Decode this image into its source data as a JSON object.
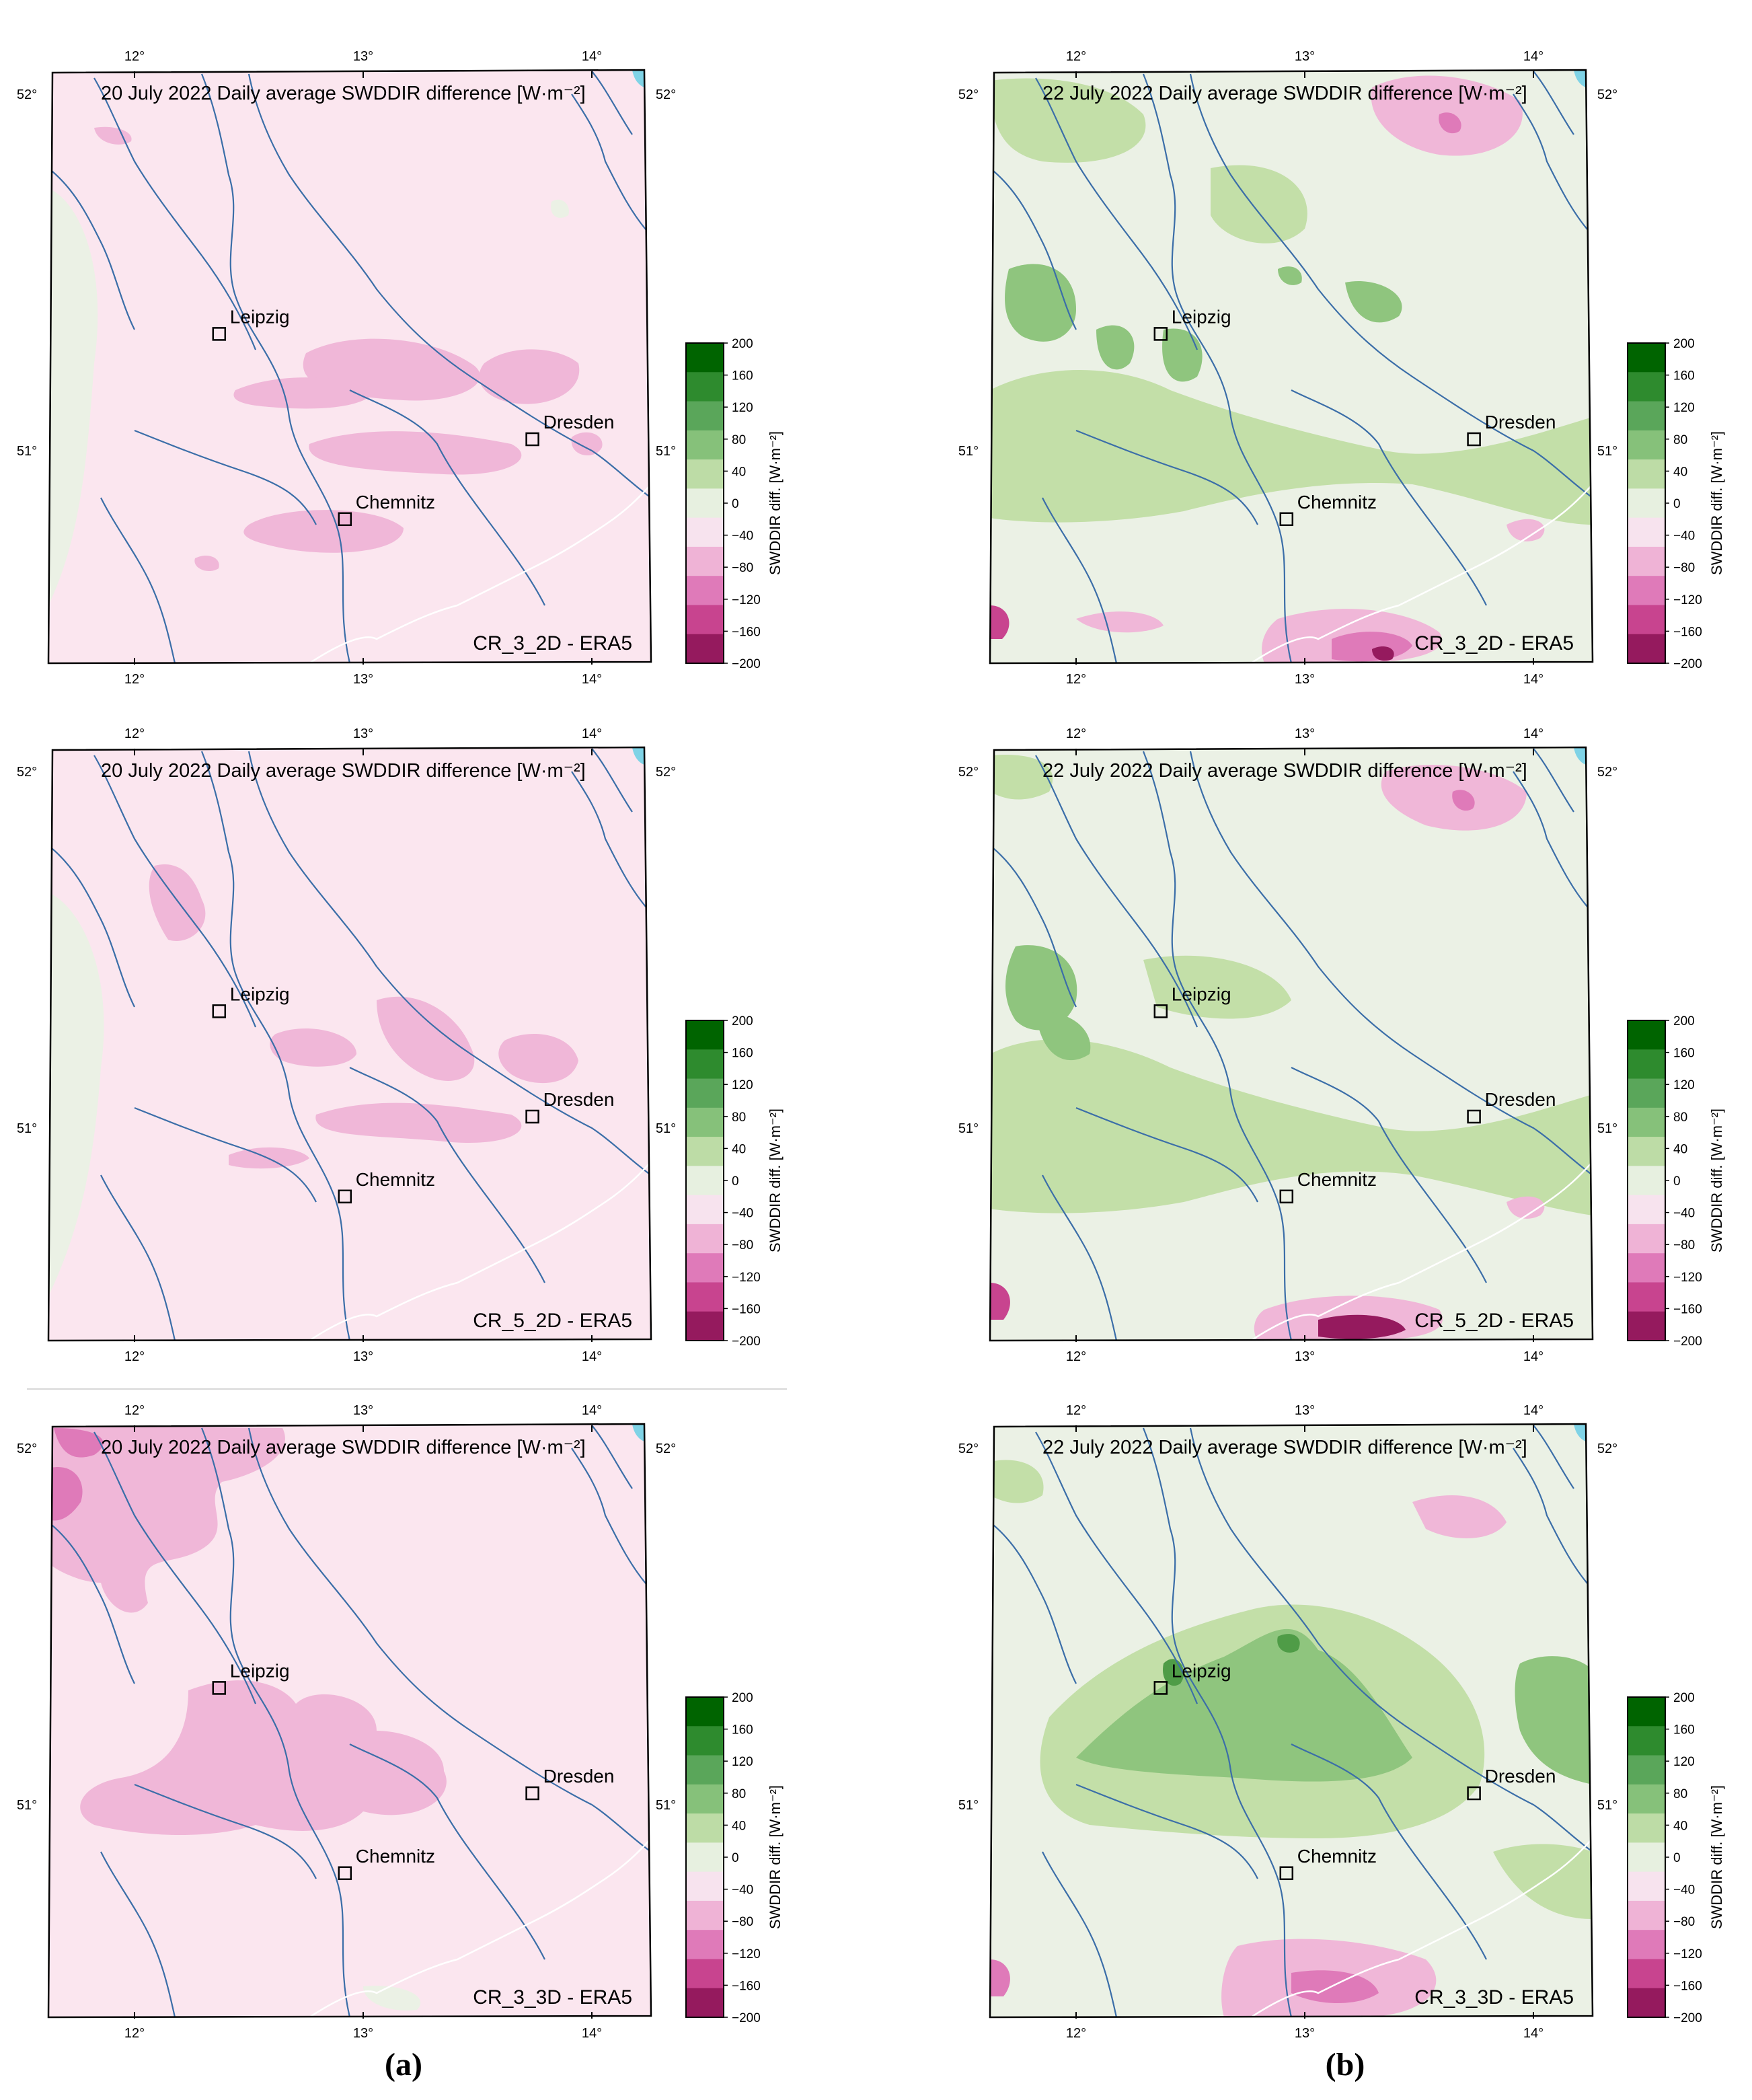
{
  "figure": {
    "variable": "SWDDIR",
    "captions": {
      "a": "(a)",
      "b": "(b)"
    },
    "lon_ticks": [
      "12°",
      "13°",
      "14°"
    ],
    "lat_ticks": [
      "52°",
      "51°"
    ],
    "cities": [
      {
        "name": "Leipzig",
        "lon": 12.37,
        "lat": 51.34
      },
      {
        "name": "Dresden",
        "lon": 13.74,
        "lat": 51.05
      },
      {
        "name": "Chemnitz",
        "lon": 12.92,
        "lat": 50.83
      }
    ],
    "colorbar": {
      "label": "SWDDIR diff. [W·m⁻²]",
      "ticks": [
        "200",
        "160",
        "120",
        "80",
        "40",
        "0",
        "−40",
        "−80",
        "−120",
        "−160",
        "−200"
      ],
      "bin_colors": [
        "#006400",
        "#2e8b2e",
        "#5aa65a",
        "#86c17a",
        "#bddca6",
        "#e7f0e0",
        "#f7e3ee",
        "#efb3d6",
        "#df7ab9",
        "#c8448f",
        "#951a5e"
      ]
    },
    "palette": {
      "pink_light": "#fbe6ef",
      "pink_mid": "#f0b7d8",
      "pink_dark": "#d773b1",
      "green_pale": "#ebf1e5",
      "green_light": "#c3df a8",
      "green_mid": "#8fc57e",
      "green_dark": "#4f9c47",
      "river": "#3b6ea8",
      "border": "#ffffff"
    }
  },
  "panels": [
    {
      "id": "a1",
      "title": "20 July 2022 Daily average SWDDIR difference [W·m⁻²]",
      "label": "CR_3_2D - ERA5"
    },
    {
      "id": "b1",
      "title": "22 July 2022 Daily average SWDDIR difference [W·m⁻²]",
      "label": "CR_3_2D - ERA5"
    },
    {
      "id": "a2",
      "title": "20 July 2022 Daily average SWDDIR difference [W·m⁻²]",
      "label": "CR_5_2D - ERA5"
    },
    {
      "id": "b2",
      "title": "22 July 2022 Daily average SWDDIR difference [W·m⁻²]",
      "label": "CR_5_2D - ERA5"
    },
    {
      "id": "a3",
      "title": "20 July 2022 Daily average SWDDIR difference [W·m⁻²]",
      "label": "CR_3_3D - ERA5"
    },
    {
      "id": "b3",
      "title": "22 July 2022 Daily average SWDDIR difference [W·m⁻²]",
      "label": "CR_3_3D - ERA5"
    }
  ]
}
